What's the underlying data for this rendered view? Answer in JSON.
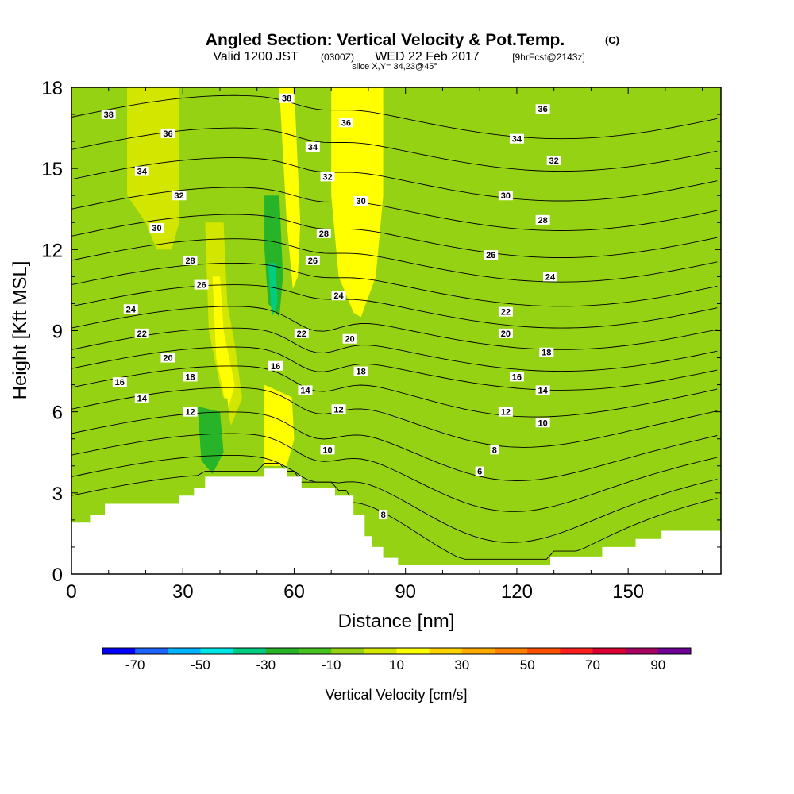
{
  "chart_data": {
    "type": "heatmap",
    "title": "Angled Section: Vertical Velocity & Pot.Temp.",
    "title_units": "(C)",
    "subtitle": {
      "valid": "Valid 1200 JST",
      "utc": "(0300Z)",
      "date": "WED 22 Feb 2017",
      "forecast": "[9hrFcst@2143z]"
    },
    "slice": "slice X,Y= 34,23@45°",
    "xlabel": "Distance [nm]",
    "ylabel": "Height [Kft MSL]",
    "xlim": [
      0,
      175
    ],
    "ylim": [
      0,
      18
    ],
    "x_ticks": [
      0,
      30,
      60,
      90,
      120,
      150
    ],
    "y_ticks": [
      0,
      3,
      6,
      9,
      12,
      15,
      18
    ],
    "colorbar": {
      "label": "Vertical Velocity [cm/s]",
      "tick_labels": [
        -70,
        -50,
        -30,
        -10,
        10,
        30,
        50,
        70,
        90
      ],
      "colors": [
        "#0000ff",
        "#1e64ff",
        "#00b4ff",
        "#00e6e6",
        "#00cd82",
        "#28b428",
        "#46c31e",
        "#96d214",
        "#d2e600",
        "#ffff00",
        "#ffd200",
        "#ffaa00",
        "#ff8200",
        "#ff5000",
        "#ff1e1e",
        "#dc0032",
        "#aa0064",
        "#6e0096"
      ]
    },
    "terrain": [
      [
        0,
        1.9
      ],
      [
        5,
        1.9
      ],
      [
        5,
        2.2
      ],
      [
        9,
        2.2
      ],
      [
        9,
        2.6
      ],
      [
        18,
        2.6
      ],
      [
        18,
        2.6
      ],
      [
        29,
        2.6
      ],
      [
        29,
        2.9
      ],
      [
        33,
        2.9
      ],
      [
        33,
        3.2
      ],
      [
        36,
        3.2
      ],
      [
        36,
        3.6
      ],
      [
        52,
        3.6
      ],
      [
        52,
        3.9
      ],
      [
        58,
        3.9
      ],
      [
        58,
        3.6
      ],
      [
        62,
        3.6
      ],
      [
        62,
        3.2
      ],
      [
        71,
        3.2
      ],
      [
        71,
        2.9
      ],
      [
        76,
        2.9
      ],
      [
        76,
        2.2
      ],
      [
        79,
        2.2
      ],
      [
        79,
        1.4
      ],
      [
        81,
        1.4
      ],
      [
        81,
        1.0
      ],
      [
        84,
        1.0
      ],
      [
        84,
        0.6
      ],
      [
        88,
        0.6
      ],
      [
        88,
        0.35
      ],
      [
        129,
        0.35
      ],
      [
        129,
        0.65
      ],
      [
        143,
        0.65
      ],
      [
        143,
        1.0
      ],
      [
        152,
        1.0
      ],
      [
        152,
        1.3
      ],
      [
        159,
        1.3
      ],
      [
        159,
        1.6
      ],
      [
        175,
        1.6
      ]
    ],
    "velocity_regions": [
      {
        "value": 15,
        "poly": [
          [
            18,
            18
          ],
          [
            26,
            18
          ],
          [
            26,
            15
          ],
          [
            24,
            13
          ],
          [
            21,
            14.5
          ],
          [
            18,
            16
          ]
        ]
      },
      {
        "value": 5,
        "poly": [
          [
            15,
            18
          ],
          [
            29,
            18
          ],
          [
            29,
            13
          ],
          [
            27,
            12
          ],
          [
            23,
            12
          ],
          [
            20,
            13
          ],
          [
            15,
            14
          ]
        ]
      },
      {
        "value": 15,
        "poly": [
          [
            54,
            18
          ],
          [
            62,
            18
          ],
          [
            62,
            14
          ],
          [
            61,
            11
          ],
          [
            58,
            10
          ],
          [
            55,
            12
          ],
          [
            54,
            15
          ]
        ]
      },
      {
        "value": 35,
        "poly": [
          [
            70,
            18
          ],
          [
            82,
            18
          ],
          [
            82,
            15
          ],
          [
            80,
            12
          ],
          [
            76,
            10.5
          ],
          [
            72,
            12
          ],
          [
            70,
            15
          ]
        ]
      },
      {
        "value": 15,
        "poly": [
          [
            67,
            18
          ],
          [
            84,
            18
          ],
          [
            84,
            14
          ],
          [
            82,
            11
          ],
          [
            78,
            9.5
          ],
          [
            72,
            10
          ],
          [
            69,
            12
          ],
          [
            67,
            15
          ]
        ]
      },
      {
        "value": 5,
        "poly": [
          [
            36,
            13
          ],
          [
            41,
            13
          ],
          [
            42,
            10
          ],
          [
            44,
            8.5
          ],
          [
            46,
            6.5
          ],
          [
            43,
            5.5
          ],
          [
            40,
            7
          ],
          [
            37,
            9
          ]
        ]
      },
      {
        "value": 15,
        "poly": [
          [
            38,
            11
          ],
          [
            40,
            11
          ],
          [
            41,
            9
          ],
          [
            44,
            7
          ],
          [
            42,
            6
          ],
          [
            39,
            8
          ]
        ]
      },
      {
        "value": 35,
        "poly": [
          [
            53,
            7
          ],
          [
            58,
            7
          ],
          [
            58,
            5
          ],
          [
            56,
            4
          ],
          [
            53,
            4.5
          ]
        ]
      },
      {
        "value": 15,
        "poly": [
          [
            52,
            7.5
          ],
          [
            59,
            7.5
          ],
          [
            60,
            5
          ],
          [
            58,
            4
          ],
          [
            52,
            4
          ]
        ]
      },
      {
        "value": -10,
        "poly": [
          [
            44,
            18
          ],
          [
            56,
            18
          ],
          [
            58,
            13
          ],
          [
            60,
            10
          ],
          [
            63,
            8
          ],
          [
            60,
            6.5
          ],
          [
            52,
            7
          ],
          [
            48,
            9
          ],
          [
            46,
            12
          ],
          [
            44,
            15
          ]
        ]
      },
      {
        "value": -25,
        "poly": [
          [
            52,
            14
          ],
          [
            56,
            14
          ],
          [
            57,
            11
          ],
          [
            56,
            9.5
          ],
          [
            53,
            10
          ],
          [
            52,
            12
          ]
        ]
      },
      {
        "value": -35,
        "poly": [
          [
            53,
            11.5
          ],
          [
            55,
            11.5
          ],
          [
            55.5,
            10
          ],
          [
            54,
            9.5
          ]
        ]
      },
      {
        "value": -10,
        "poly": [
          [
            30,
            6.5
          ],
          [
            42,
            6.5
          ],
          [
            44,
            4
          ],
          [
            42,
            3.5
          ],
          [
            36,
            3.5
          ],
          [
            32,
            4.5
          ]
        ]
      },
      {
        "value": -25,
        "poly": [
          [
            34,
            6.2
          ],
          [
            40,
            6
          ],
          [
            41,
            4.5
          ],
          [
            38,
            3.7
          ],
          [
            35,
            4.2
          ]
        ]
      },
      {
        "value": -10,
        "poly": [
          [
            60,
            18
          ],
          [
            70,
            18
          ],
          [
            70,
            14
          ],
          [
            72,
            11
          ],
          [
            78,
            9
          ],
          [
            82,
            7
          ],
          [
            82,
            5
          ],
          [
            78,
            4
          ],
          [
            74,
            5
          ],
          [
            68,
            6
          ],
          [
            64,
            8
          ],
          [
            62,
            12
          ]
        ]
      },
      {
        "value": -10,
        "poly": [
          [
            75,
            4.5
          ],
          [
            86,
            4.5
          ],
          [
            92,
            2.5
          ],
          [
            105,
            2.7
          ],
          [
            123,
            2.9
          ],
          [
            126,
            2
          ],
          [
            125,
            0.35
          ],
          [
            88,
            0.35
          ],
          [
            84,
            0.6
          ],
          [
            81,
            1
          ],
          [
            79,
            1.4
          ],
          [
            76,
            2.2
          ]
        ]
      },
      {
        "value": -10,
        "poly": [
          [
            113,
            18
          ],
          [
            117,
            18
          ],
          [
            117,
            15
          ],
          [
            118,
            12
          ],
          [
            116,
            10
          ],
          [
            112,
            8.5
          ],
          [
            108,
            10
          ],
          [
            110,
            14
          ]
        ]
      },
      {
        "value": -10,
        "poly": [
          [
            126,
            18
          ],
          [
            140,
            18
          ],
          [
            140,
            16
          ],
          [
            136,
            12
          ],
          [
            132,
            9.5
          ],
          [
            128,
            8
          ],
          [
            125,
            10
          ],
          [
            124,
            14
          ]
        ]
      },
      {
        "value": -10,
        "poly": [
          [
            144,
            18
          ],
          [
            158,
            18
          ],
          [
            160,
            15
          ],
          [
            152,
            13
          ],
          [
            147,
            14
          ]
        ]
      },
      {
        "value": -10,
        "poly": [
          [
            0,
            18
          ],
          [
            5,
            18
          ],
          [
            5,
            16
          ],
          [
            2,
            15
          ],
          [
            0,
            15
          ]
        ]
      },
      {
        "value": -10,
        "poly": [
          [
            3,
            8.5
          ],
          [
            8,
            8.5
          ],
          [
            8,
            7
          ],
          [
            4,
            7
          ]
        ]
      },
      {
        "value": -10,
        "poly": [
          [
            129,
            3.5
          ],
          [
            150,
            3.6
          ],
          [
            158,
            3.4
          ],
          [
            160,
            2.5
          ],
          [
            158,
            1.2
          ],
          [
            143,
            1
          ],
          [
            129,
            0.7
          ]
        ]
      }
    ],
    "theta_contours": [
      {
        "label": "6",
        "base": 2.9
      },
      {
        "label": "8",
        "base": 3.6
      },
      {
        "label": "10",
        "base": 4.4
      },
      {
        "label": "12",
        "base": 5.2
      },
      {
        "label": "14",
        "base": 6.1
      },
      {
        "label": "16",
        "base": 6.9
      },
      {
        "label": "18",
        "base": 7.6
      },
      {
        "label": "20",
        "base": 8.3
      },
      {
        "label": "22",
        "base": 9.1
      },
      {
        "label": "24",
        "base": 9.9
      },
      {
        "label": "26",
        "base": 10.7
      },
      {
        "label": "28",
        "base": 11.6
      },
      {
        "label": "30",
        "base": 12.5
      },
      {
        "label": "32",
        "base": 13.5
      },
      {
        "label": "34",
        "base": 14.6
      },
      {
        "label": "36",
        "base": 15.7
      },
      {
        "label": "38",
        "base": 16.9
      }
    ],
    "contour_labels": [
      {
        "text": "38",
        "x": 10,
        "y": 17.0
      },
      {
        "text": "36",
        "x": 26,
        "y": 16.3
      },
      {
        "text": "34",
        "x": 19,
        "y": 14.9
      },
      {
        "text": "32",
        "x": 29,
        "y": 14.0
      },
      {
        "text": "30",
        "x": 23,
        "y": 12.8
      },
      {
        "text": "28",
        "x": 32,
        "y": 11.6
      },
      {
        "text": "26",
        "x": 35,
        "y": 10.7
      },
      {
        "text": "24",
        "x": 16,
        "y": 9.8
      },
      {
        "text": "22",
        "x": 19,
        "y": 8.9
      },
      {
        "text": "20",
        "x": 26,
        "y": 8.0
      },
      {
        "text": "18",
        "x": 32,
        "y": 7.3
      },
      {
        "text": "16",
        "x": 13,
        "y": 7.1
      },
      {
        "text": "14",
        "x": 19,
        "y": 6.5
      },
      {
        "text": "12",
        "x": 32,
        "y": 6.0
      },
      {
        "text": "38",
        "x": 58,
        "y": 17.6
      },
      {
        "text": "36",
        "x": 74,
        "y": 16.7
      },
      {
        "text": "34",
        "x": 65,
        "y": 15.8
      },
      {
        "text": "32",
        "x": 69,
        "y": 14.7
      },
      {
        "text": "30",
        "x": 78,
        "y": 13.8
      },
      {
        "text": "28",
        "x": 68,
        "y": 12.6
      },
      {
        "text": "26",
        "x": 65,
        "y": 11.6
      },
      {
        "text": "24",
        "x": 72,
        "y": 10.3
      },
      {
        "text": "22",
        "x": 62,
        "y": 8.9
      },
      {
        "text": "20",
        "x": 75,
        "y": 8.7
      },
      {
        "text": "18",
        "x": 78,
        "y": 7.5
      },
      {
        "text": "16",
        "x": 55,
        "y": 7.7
      },
      {
        "text": "14",
        "x": 63,
        "y": 6.8
      },
      {
        "text": "12",
        "x": 72,
        "y": 6.1
      },
      {
        "text": "10",
        "x": 69,
        "y": 4.6
      },
      {
        "text": "8",
        "x": 84,
        "y": 2.2
      },
      {
        "text": "36",
        "x": 127,
        "y": 17.2
      },
      {
        "text": "34",
        "x": 120,
        "y": 16.1
      },
      {
        "text": "32",
        "x": 130,
        "y": 15.3
      },
      {
        "text": "30",
        "x": 117,
        "y": 14.0
      },
      {
        "text": "28",
        "x": 127,
        "y": 13.1
      },
      {
        "text": "26",
        "x": 113,
        "y": 11.8
      },
      {
        "text": "24",
        "x": 129,
        "y": 11.0
      },
      {
        "text": "22",
        "x": 117,
        "y": 9.7
      },
      {
        "text": "20",
        "x": 117,
        "y": 8.9
      },
      {
        "text": "18",
        "x": 128,
        "y": 8.2
      },
      {
        "text": "16",
        "x": 120,
        "y": 7.3
      },
      {
        "text": "14",
        "x": 127,
        "y": 6.8
      },
      {
        "text": "12",
        "x": 117,
        "y": 6.0
      },
      {
        "text": "10",
        "x": 127,
        "y": 5.6
      },
      {
        "text": "8",
        "x": 114,
        "y": 4.6
      },
      {
        "text": "6",
        "x": 110,
        "y": 3.8
      }
    ]
  }
}
